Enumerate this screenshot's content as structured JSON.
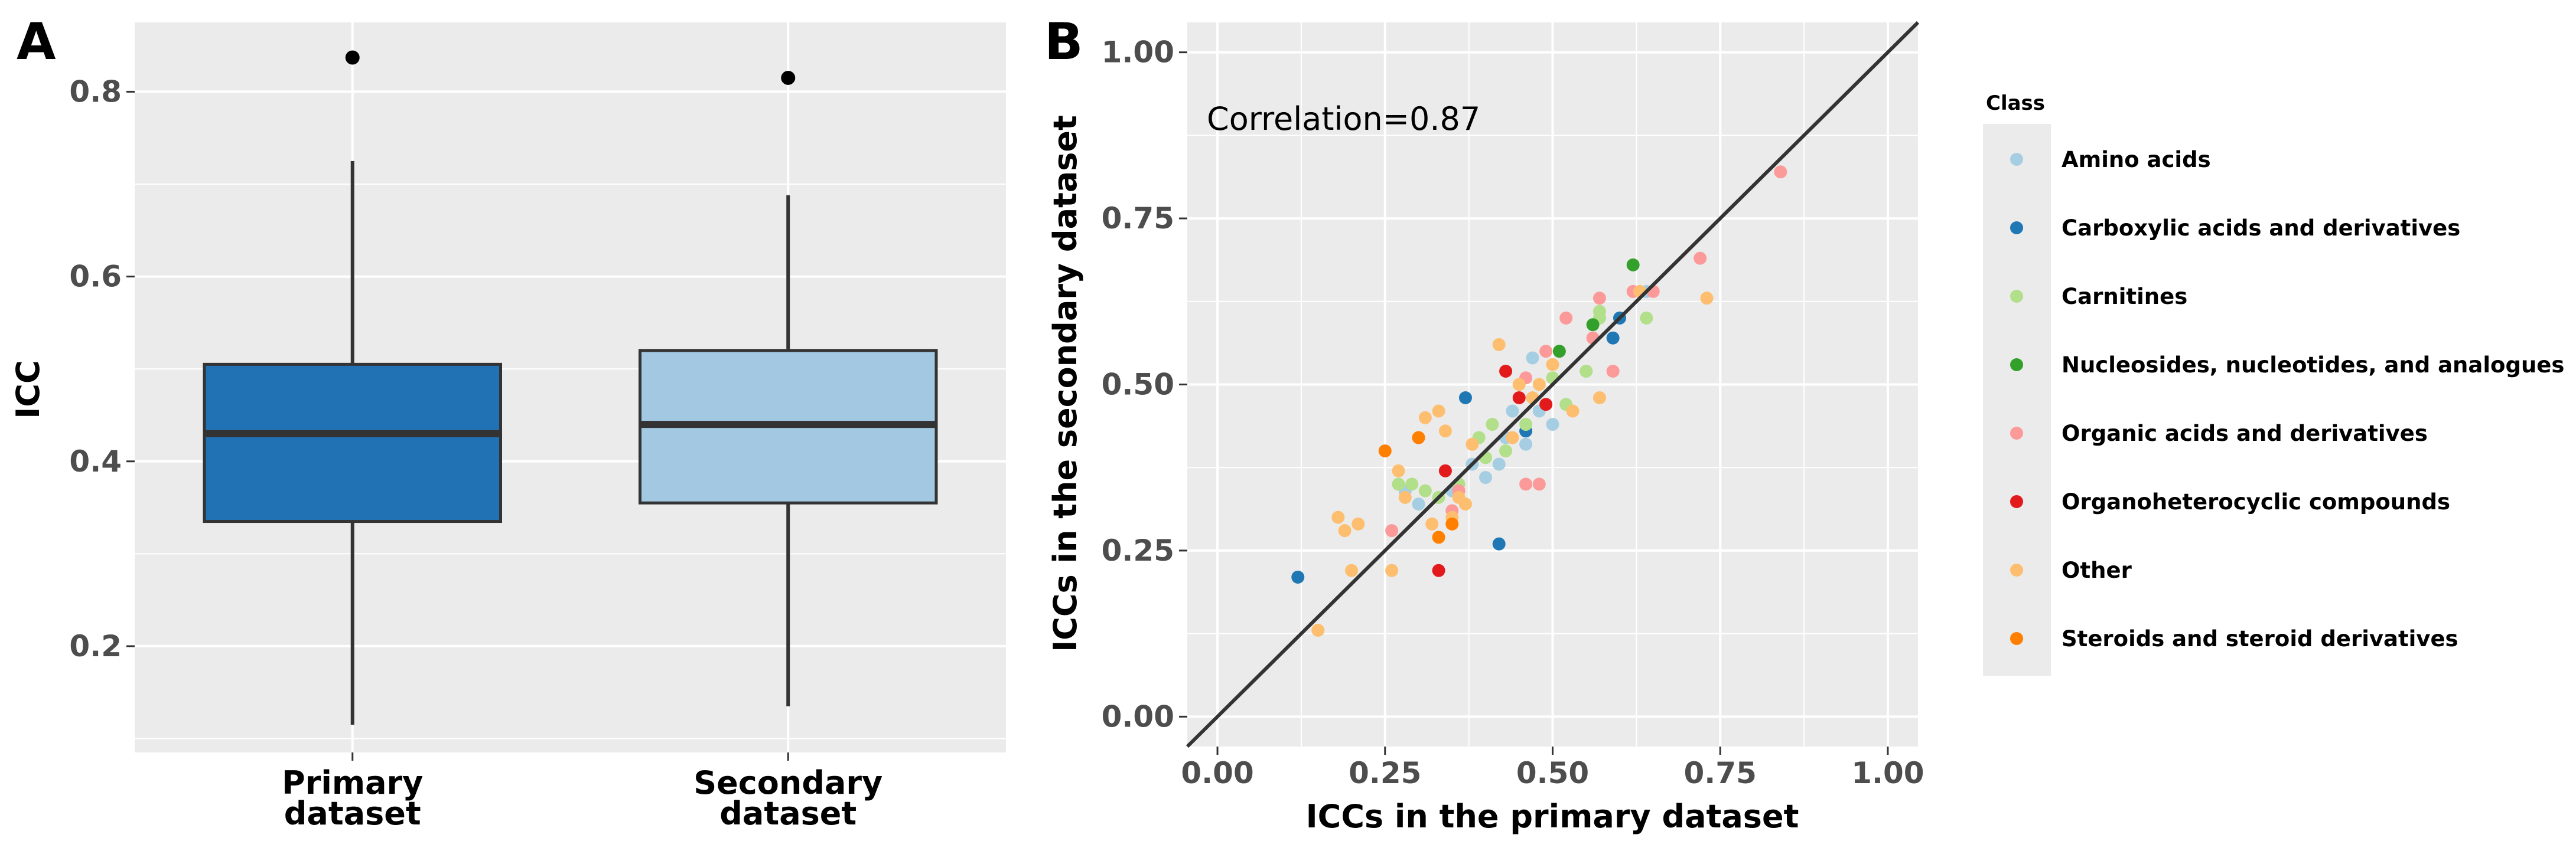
{
  "chart_data": [
    {
      "panel": "A",
      "type": "box",
      "title": "",
      "xlabel": "",
      "ylabel": "ICC",
      "ylim": [
        0.085,
        0.875
      ],
      "yticks": [
        0.2,
        0.4,
        0.6,
        0.8
      ],
      "ytick_labels": [
        "0.2",
        "0.4",
        "0.6",
        "0.8"
      ],
      "grid": true,
      "categories": [
        {
          "label_lines": [
            "Primary",
            "dataset"
          ],
          "color": "#2171b5",
          "q1": 0.335,
          "median": 0.43,
          "q3": 0.505,
          "whisker_low": 0.115,
          "whisker_high": 0.725,
          "outliers": [
            0.837
          ]
        },
        {
          "label_lines": [
            "Secondary",
            "dataset"
          ],
          "color": "#a2c8e2",
          "q1": 0.355,
          "median": 0.44,
          "q3": 0.52,
          "whisker_low": 0.135,
          "whisker_high": 0.688,
          "outliers": [
            0.815
          ]
        }
      ]
    },
    {
      "panel": "B",
      "type": "scatter",
      "title": "",
      "xlabel": "ICCs in the primary dataset",
      "ylabel": "ICCs in the secondary dataset",
      "xlim": [
        -0.045,
        1.045
      ],
      "ylim": [
        -0.045,
        1.045
      ],
      "xticks": [
        0.0,
        0.25,
        0.5,
        0.75,
        1.0
      ],
      "xtick_labels": [
        "0.00",
        "0.25",
        "0.50",
        "0.75",
        "1.00"
      ],
      "yticks": [
        0.0,
        0.25,
        0.5,
        0.75,
        1.0
      ],
      "ytick_labels": [
        "0.00",
        "0.25",
        "0.50",
        "0.75",
        "1.00"
      ],
      "grid": true,
      "annotation": "Correlation=0.87",
      "diagonal_line": true,
      "legend_title": "Class",
      "legend_position": "right",
      "series": [
        {
          "name": "Amino acids",
          "color": "#a6cee3",
          "points": [
            [
              0.28,
              0.34
            ],
            [
              0.3,
              0.32
            ],
            [
              0.35,
              0.34
            ],
            [
              0.38,
              0.38
            ],
            [
              0.4,
              0.36
            ],
            [
              0.42,
              0.38
            ],
            [
              0.43,
              0.42
            ],
            [
              0.44,
              0.46
            ],
            [
              0.46,
              0.41
            ],
            [
              0.47,
              0.54
            ],
            [
              0.48,
              0.46
            ],
            [
              0.5,
              0.44
            ],
            [
              0.55,
              0.52
            ],
            [
              0.6,
              0.6
            ],
            [
              0.64,
              0.64
            ]
          ]
        },
        {
          "name": "Carboxylic acids and derivatives",
          "color": "#1f78b4",
          "points": [
            [
              0.12,
              0.21
            ],
            [
              0.37,
              0.48
            ],
            [
              0.42,
              0.26
            ],
            [
              0.46,
              0.43
            ],
            [
              0.59,
              0.57
            ],
            [
              0.6,
              0.6
            ]
          ]
        },
        {
          "name": "Carnitines",
          "color": "#b2df8a",
          "points": [
            [
              0.27,
              0.35
            ],
            [
              0.29,
              0.35
            ],
            [
              0.31,
              0.34
            ],
            [
              0.33,
              0.33
            ],
            [
              0.36,
              0.35
            ],
            [
              0.39,
              0.42
            ],
            [
              0.4,
              0.39
            ],
            [
              0.41,
              0.44
            ],
            [
              0.43,
              0.4
            ],
            [
              0.46,
              0.44
            ],
            [
              0.5,
              0.51
            ],
            [
              0.52,
              0.47
            ],
            [
              0.55,
              0.52
            ],
            [
              0.57,
              0.6
            ],
            [
              0.57,
              0.61
            ],
            [
              0.64,
              0.6
            ]
          ]
        },
        {
          "name": "Nucleosides, nucleotides, and analogues",
          "color": "#33a02c",
          "points": [
            [
              0.51,
              0.55
            ],
            [
              0.56,
              0.59
            ],
            [
              0.62,
              0.68
            ]
          ]
        },
        {
          "name": "Organic acids and derivatives",
          "color": "#fb9a99",
          "points": [
            [
              0.26,
              0.28
            ],
            [
              0.35,
              0.31
            ],
            [
              0.36,
              0.34
            ],
            [
              0.46,
              0.35
            ],
            [
              0.48,
              0.35
            ],
            [
              0.46,
              0.51
            ],
            [
              0.49,
              0.55
            ],
            [
              0.52,
              0.6
            ],
            [
              0.56,
              0.57
            ],
            [
              0.57,
              0.63
            ],
            [
              0.59,
              0.52
            ],
            [
              0.62,
              0.64
            ],
            [
              0.65,
              0.64
            ],
            [
              0.72,
              0.69
            ],
            [
              0.84,
              0.82
            ]
          ]
        },
        {
          "name": "Organoheterocyclic compounds",
          "color": "#e31a1c",
          "points": [
            [
              0.33,
              0.22
            ],
            [
              0.34,
              0.37
            ],
            [
              0.43,
              0.52
            ],
            [
              0.45,
              0.48
            ],
            [
              0.49,
              0.47
            ]
          ]
        },
        {
          "name": "Other",
          "color": "#fdbf6f",
          "points": [
            [
              0.15,
              0.13
            ],
            [
              0.18,
              0.3
            ],
            [
              0.19,
              0.28
            ],
            [
              0.2,
              0.22
            ],
            [
              0.21,
              0.29
            ],
            [
              0.26,
              0.22
            ],
            [
              0.27,
              0.37
            ],
            [
              0.28,
              0.33
            ],
            [
              0.3,
              0.42
            ],
            [
              0.31,
              0.45
            ],
            [
              0.32,
              0.29
            ],
            [
              0.33,
              0.46
            ],
            [
              0.34,
              0.43
            ],
            [
              0.35,
              0.3
            ],
            [
              0.36,
              0.33
            ],
            [
              0.37,
              0.32
            ],
            [
              0.38,
              0.41
            ],
            [
              0.42,
              0.56
            ],
            [
              0.44,
              0.42
            ],
            [
              0.45,
              0.5
            ],
            [
              0.47,
              0.48
            ],
            [
              0.48,
              0.5
            ],
            [
              0.5,
              0.53
            ],
            [
              0.53,
              0.46
            ],
            [
              0.57,
              0.48
            ],
            [
              0.63,
              0.64
            ],
            [
              0.73,
              0.63
            ]
          ]
        },
        {
          "name": "Steroids and steroid derivatives",
          "color": "#ff7f00",
          "points": [
            [
              0.25,
              0.4
            ],
            [
              0.3,
              0.42
            ],
            [
              0.33,
              0.27
            ],
            [
              0.35,
              0.29
            ]
          ]
        }
      ]
    }
  ]
}
